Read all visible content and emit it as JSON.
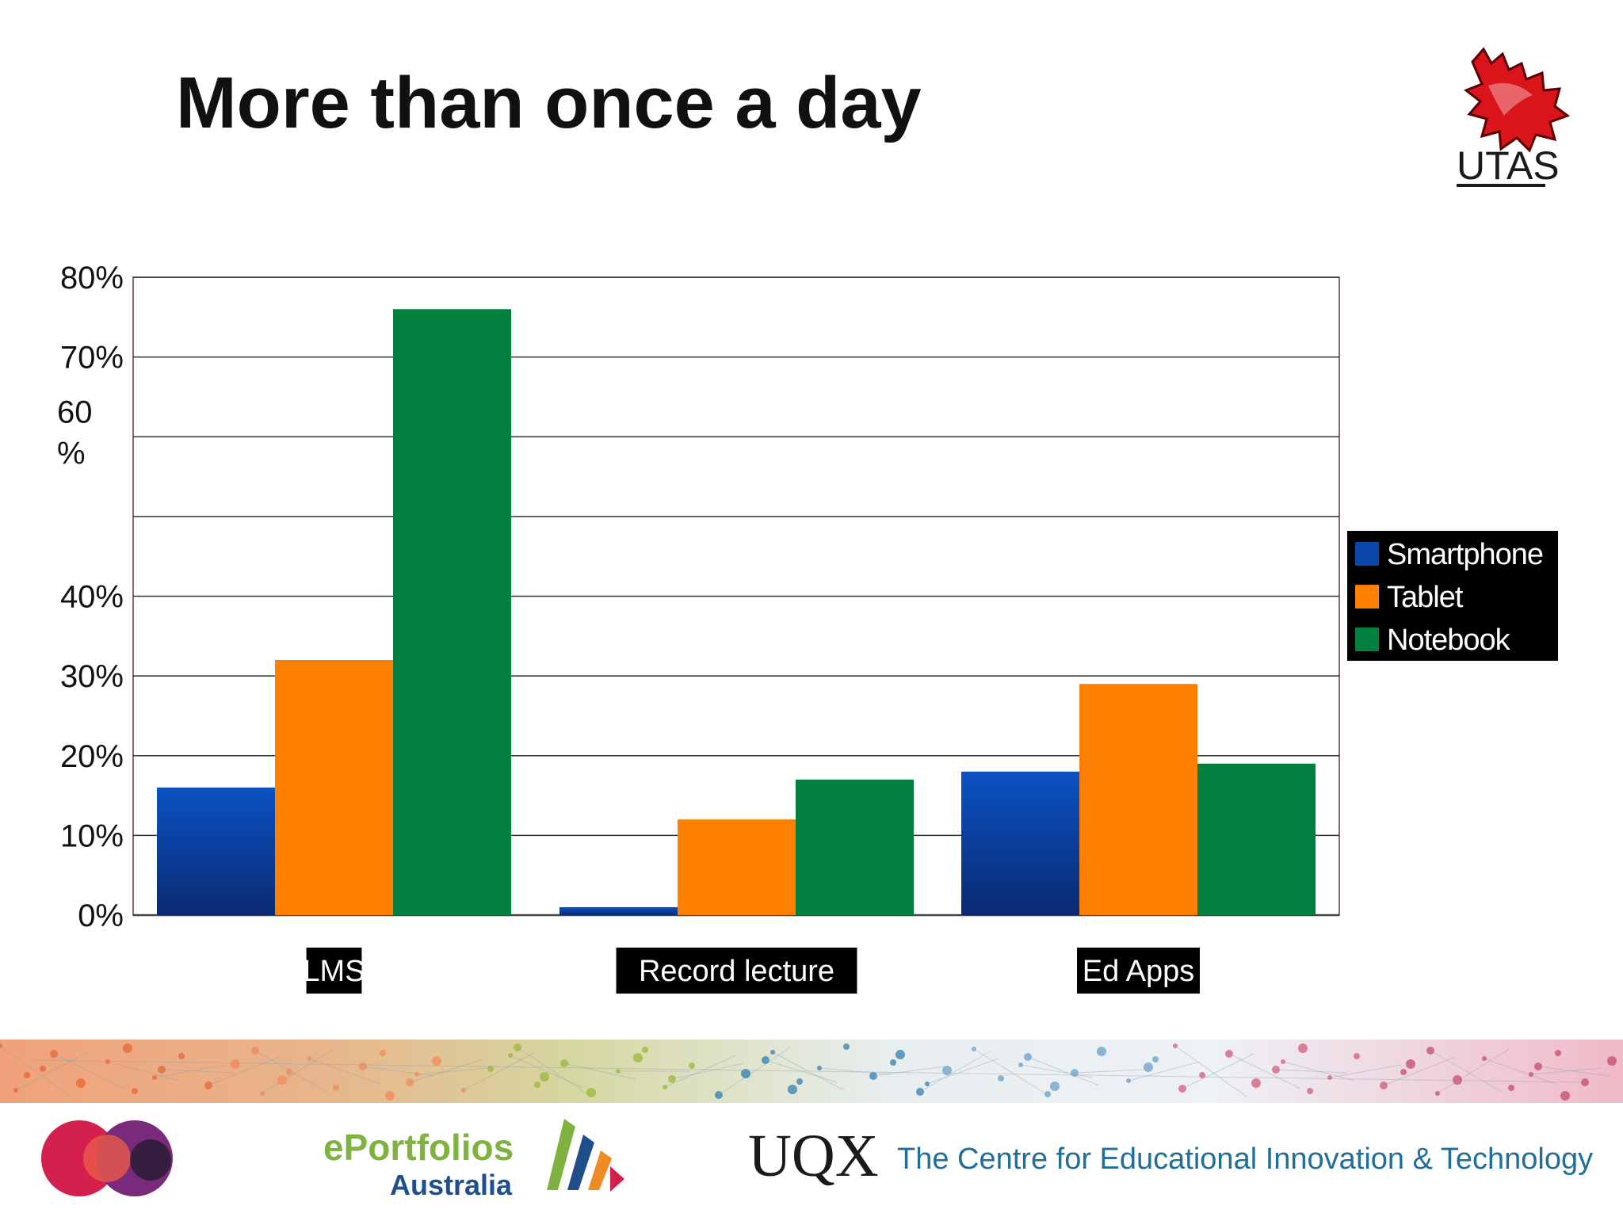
{
  "slide": {
    "title": "More than once a day",
    "logo_text": "UTAS",
    "footer": {
      "logo_eportfolios_line1": "ePortfolios",
      "logo_eportfolios_line2": "Australia",
      "logo_uqx": "UQX",
      "centre_text": "The Centre for Educational Innovation & Technology"
    }
  },
  "colors": {
    "smartphone": "#0b47a8",
    "tablet": "#ff8000",
    "notebook": "#007f3f",
    "legend_bg": "#000000",
    "footer_text": "#1f6f9a",
    "utas_red": "#d9151b"
  },
  "chart_data": {
    "type": "bar",
    "title": "",
    "xlabel": "",
    "ylabel": "",
    "categories": [
      "LMS",
      "Record lecture",
      "Ed Apps"
    ],
    "series": [
      {
        "name": "Smartphone",
        "values": [
          16,
          1,
          18
        ]
      },
      {
        "name": "Tablet",
        "values": [
          32,
          12,
          29
        ]
      },
      {
        "name": "Notebook",
        "values": [
          76,
          17,
          19
        ]
      }
    ],
    "ylim": [
      0,
      80
    ],
    "yticks": [
      {
        "value": 80,
        "label": "80%"
      },
      {
        "value": 70,
        "label": "70%"
      },
      {
        "value": 60,
        "label": "60 %"
      },
      {
        "value": 40,
        "label": "40%"
      },
      {
        "value": 30,
        "label": "30%"
      },
      {
        "value": 20,
        "label": "20%"
      },
      {
        "value": 10,
        "label": "10%"
      },
      {
        "value": 0,
        "label": "0%"
      }
    ],
    "gridlines": [
      0,
      10,
      20,
      30,
      40,
      50,
      60,
      70,
      80
    ],
    "grid": true,
    "legend_position": "right"
  }
}
